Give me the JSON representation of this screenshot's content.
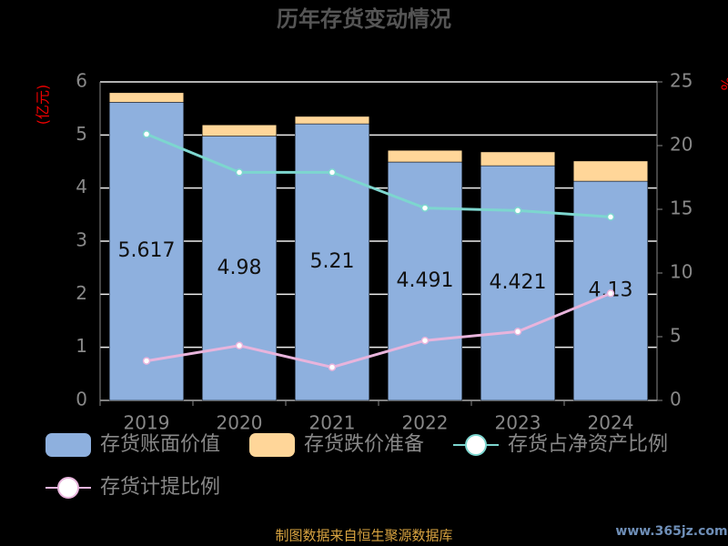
{
  "chart_data": {
    "type": "bar",
    "title": "历年存货变动情况",
    "categories": [
      "2019",
      "2020",
      "2021",
      "2022",
      "2023",
      "2024"
    ],
    "series": [
      {
        "name": "存货账面价值",
        "color": "#8eb0de",
        "type": "bar",
        "values": [
          5.617,
          4.98,
          5.21,
          4.491,
          4.421,
          4.13
        ]
      },
      {
        "name": "存货跌价准备",
        "color": "#ffd699",
        "type": "bar",
        "values": [
          0.18,
          0.21,
          0.14,
          0.22,
          0.26,
          0.38
        ]
      },
      {
        "name": "存货占净资产比例",
        "color": "#7dd6cf",
        "type": "line",
        "axis": "y2",
        "values": [
          20.9,
          17.9,
          17.9,
          15.1,
          14.9,
          14.4
        ]
      },
      {
        "name": "存货计提比例",
        "color": "#e8b4dc",
        "type": "line",
        "axis": "y2",
        "values": [
          3.1,
          4.3,
          2.6,
          4.7,
          5.4,
          8.4
        ]
      }
    ],
    "y_label": "(亿元)",
    "y2_label": "%",
    "ylim": [
      0,
      6
    ],
    "yticks": [
      0,
      1,
      2,
      3,
      4,
      5,
      6
    ],
    "y2lim": [
      0,
      25
    ],
    "y2ticks": [
      0,
      5,
      10,
      15,
      20,
      25
    ],
    "grid": true,
    "legend": "bottom",
    "source": "制图数据来自恒生聚源数据库",
    "watermark": "www.365jz.com"
  }
}
